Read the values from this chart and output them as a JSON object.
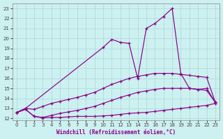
{
  "xlabel": "Windchill (Refroidissement éolien,°C)",
  "ylabel": "",
  "xlim": [
    -0.5,
    23.5
  ],
  "ylim": [
    11.8,
    23.5
  ],
  "xticks": [
    0,
    1,
    2,
    3,
    4,
    5,
    6,
    7,
    8,
    9,
    10,
    11,
    12,
    13,
    14,
    15,
    16,
    17,
    18,
    19,
    20,
    21,
    22,
    23
  ],
  "yticks": [
    12,
    13,
    14,
    15,
    16,
    17,
    18,
    19,
    20,
    21,
    22,
    23
  ],
  "bg_color": "#cdf0f0",
  "grid_color": "#aad8d8",
  "line_color": "#880088",
  "line1_x": [
    0,
    1,
    2,
    3,
    4,
    5,
    6,
    7,
    8,
    9,
    10,
    11,
    12,
    13,
    14,
    15,
    16,
    17,
    18,
    19,
    20,
    21,
    22,
    23
  ],
  "line1_y": [
    12.6,
    12.9,
    12.2,
    12.05,
    12.1,
    12.1,
    12.15,
    12.2,
    12.2,
    12.2,
    12.25,
    12.3,
    12.4,
    12.5,
    12.55,
    12.6,
    12.7,
    12.8,
    12.9,
    13.0,
    13.1,
    13.2,
    13.3,
    13.5
  ],
  "line2_x": [
    0,
    1,
    2,
    3,
    4,
    5,
    6,
    7,
    8,
    9,
    10,
    11,
    12,
    13,
    14,
    15,
    16,
    17,
    18,
    19,
    20,
    21,
    22,
    23
  ],
  "line2_y": [
    12.6,
    12.9,
    12.2,
    12.1,
    12.3,
    12.5,
    12.65,
    12.8,
    13.0,
    13.2,
    13.5,
    13.8,
    14.1,
    14.35,
    14.6,
    14.75,
    14.9,
    15.0,
    15.0,
    15.0,
    15.0,
    14.9,
    14.8,
    13.6
  ],
  "line3_x": [
    0,
    1,
    2,
    3,
    4,
    5,
    6,
    7,
    8,
    9,
    10,
    11,
    12,
    13,
    14,
    15,
    16,
    17,
    18,
    19,
    20,
    21,
    22,
    23
  ],
  "line3_y": [
    12.6,
    13.0,
    12.9,
    13.2,
    13.5,
    13.7,
    13.9,
    14.1,
    14.35,
    14.6,
    15.0,
    15.4,
    15.7,
    16.0,
    16.2,
    16.35,
    16.5,
    16.5,
    16.5,
    16.4,
    16.3,
    16.2,
    16.1,
    13.6
  ],
  "line4_x": [
    0,
    1,
    10,
    11,
    12,
    13,
    14,
    15,
    16,
    17,
    18,
    19,
    20,
    21,
    22,
    23
  ],
  "line4_y": [
    12.6,
    13.0,
    19.1,
    19.9,
    19.6,
    19.5,
    16.0,
    21.0,
    21.5,
    22.2,
    23.0,
    16.5,
    15.0,
    14.9,
    15.0,
    13.6
  ]
}
